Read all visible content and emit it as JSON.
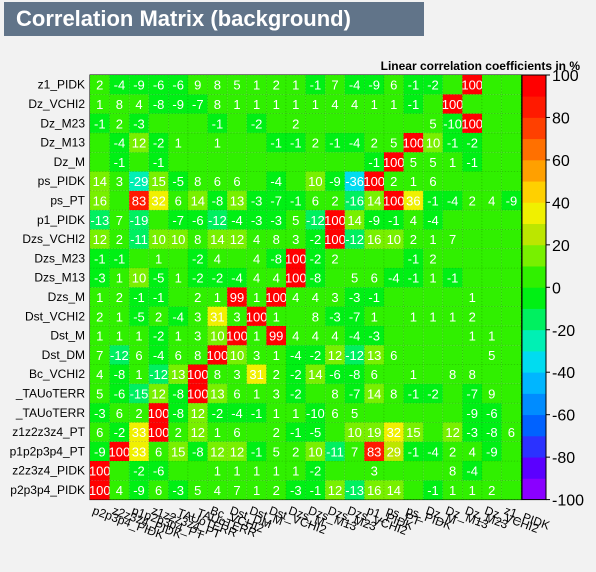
{
  "chart_data": {
    "type": "heatmap",
    "title": "Correlation Matrix (background)",
    "subtitle": "Linear correlation coefficients in %",
    "variables": [
      "p2p3p4_PIDK",
      "z2z3z4_PIDK",
      "p1p2p3p4_PT",
      "z1z2z3z4_PT",
      "_TAUoTERR",
      "_TAUoTERR",
      "Bc_VCHI2",
      "Dst_DM",
      "Dst_M",
      "Dst_VCHI2",
      "Dzs_M",
      "Dzs_M13",
      "Dzs_M23",
      "Dzs_VCHI2",
      "p1_PIDK",
      "ps_PT",
      "ps_PIDK",
      "Dz_M",
      "Dz_M13",
      "Dz_M23",
      "Dz_VCHI2",
      "z1_PIDK"
    ],
    "rows": [
      [
        "",
        "",
        "",
        "",
        "",
        "",
        "",
        "",
        "",
        "",
        "",
        "",
        "",
        "",
        "",
        "",
        "",
        "",
        "",
        "",
        "",
        ""
      ],
      [
        "",
        "",
        "",
        "",
        "",
        "",
        "",
        "",
        "",
        "",
        "",
        "",
        "",
        "",
        "",
        "",
        "",
        "",
        "",
        "",
        "",
        ""
      ],
      [
        "",
        "",
        "",
        "",
        "",
        "",
        "",
        "",
        "",
        "",
        "",
        "",
        "",
        "",
        "",
        "",
        "",
        "",
        "",
        "",
        "",
        ""
      ],
      [
        "",
        "",
        "",
        "",
        "",
        "",
        "",
        "",
        "",
        "",
        "",
        "",
        "",
        "",
        "",
        "",
        "",
        "",
        "",
        "",
        "",
        ""
      ],
      [
        "",
        "",
        "",
        "",
        "",
        "",
        "",
        "",
        "",
        "",
        "",
        "",
        "",
        "",
        "",
        "",
        "",
        "",
        "",
        "",
        "",
        ""
      ],
      [
        "",
        "",
        "",
        "",
        "",
        "",
        "",
        "",
        "",
        "",
        "",
        "",
        "",
        "",
        "",
        "",
        "",
        "",
        "",
        "",
        "",
        ""
      ],
      [
        "",
        "",
        "",
        "",
        "",
        "",
        "",
        "",
        "",
        "",
        "",
        "",
        "",
        "",
        "",
        "",
        "",
        "",
        "",
        "",
        "",
        ""
      ],
      [
        "",
        "",
        "",
        "",
        "",
        "",
        "",
        "",
        "",
        "",
        "",
        "",
        "",
        "",
        "",
        "",
        "",
        "",
        "",
        "",
        "",
        ""
      ],
      [
        "",
        "",
        "",
        "",
        "",
        "",
        "",
        "",
        "",
        "",
        "",
        "",
        "",
        "",
        "",
        "",
        "",
        "",
        "",
        "",
        "",
        ""
      ],
      [
        "",
        "",
        "",
        "",
        "",
        "",
        "",
        "",
        "",
        "",
        "",
        "",
        "",
        "",
        "",
        "",
        "",
        "",
        "",
        "",
        "",
        ""
      ],
      [
        "",
        "",
        "",
        "",
        "",
        "",
        "",
        "",
        "",
        "",
        "",
        "",
        "",
        "",
        "",
        "",
        "",
        "",
        "",
        "",
        "",
        ""
      ],
      [
        "",
        "",
        "",
        "",
        "",
        "",
        "",
        "",
        "",
        "",
        "",
        "",
        "",
        "",
        "",
        "",
        "",
        "",
        "",
        "",
        "",
        ""
      ],
      [
        "",
        "",
        "",
        "",
        "",
        "",
        "",
        "",
        "",
        "",
        "",
        "",
        "",
        "",
        "",
        "",
        "",
        "",
        "",
        "",
        "",
        ""
      ],
      [
        "",
        "",
        "",
        "",
        "",
        "",
        "",
        "",
        "",
        "",
        "",
        "",
        "",
        "",
        "",
        "",
        "",
        "",
        "",
        "",
        "",
        ""
      ],
      [
        "",
        "",
        "",
        "",
        "",
        "",
        "",
        "",
        "",
        "",
        "",
        "",
        "",
        "",
        "",
        "",
        "",
        "",
        "",
        "",
        "",
        ""
      ],
      [
        "",
        "",
        "",
        "",
        "",
        "",
        "",
        "",
        "",
        "",
        "",
        "",
        "",
        "",
        "",
        "",
        "",
        "",
        "",
        "",
        "",
        ""
      ],
      [
        "",
        "",
        "",
        "",
        "",
        "",
        "",
        "",
        "",
        "",
        "",
        "",
        "",
        "",
        "",
        "",
        "",
        "",
        "",
        "",
        "",
        ""
      ],
      [
        "",
        "",
        "",
        "",
        "",
        "",
        "",
        "",
        "",
        "",
        "",
        "",
        "",
        "",
        "",
        "",
        "",
        "",
        "",
        "",
        "",
        ""
      ],
      [
        "",
        "",
        "",
        "",
        "",
        "",
        "",
        "",
        "",
        "",
        "",
        "",
        "",
        "",
        "",
        "",
        "",
        "",
        "",
        "",
        "",
        ""
      ],
      [
        "",
        "",
        "",
        "",
        "",
        "",
        "",
        "",
        "",
        "",
        "",
        "",
        "",
        "",
        "",
        "",
        "",
        "",
        "",
        "",
        "",
        ""
      ],
      [
        "",
        "",
        "",
        "",
        "",
        "",
        "",
        "",
        "",
        "",
        "",
        "",
        "",
        "",
        "",
        "",
        "",
        "",
        "",
        "",
        "",
        ""
      ],
      [
        "",
        "",
        "",
        "",
        "",
        "",
        "",
        "",
        "",
        "",
        "",
        "",
        "",
        "",
        "",
        "",
        "",
        "",
        "",
        "",
        "",
        ""
      ]
    ],
    "color_scale": {
      "min": -100,
      "max": 100,
      "ticks": [
        -100,
        -80,
        -60,
        -40,
        -20,
        0,
        20,
        40,
        60,
        80,
        100
      ]
    }
  }
}
